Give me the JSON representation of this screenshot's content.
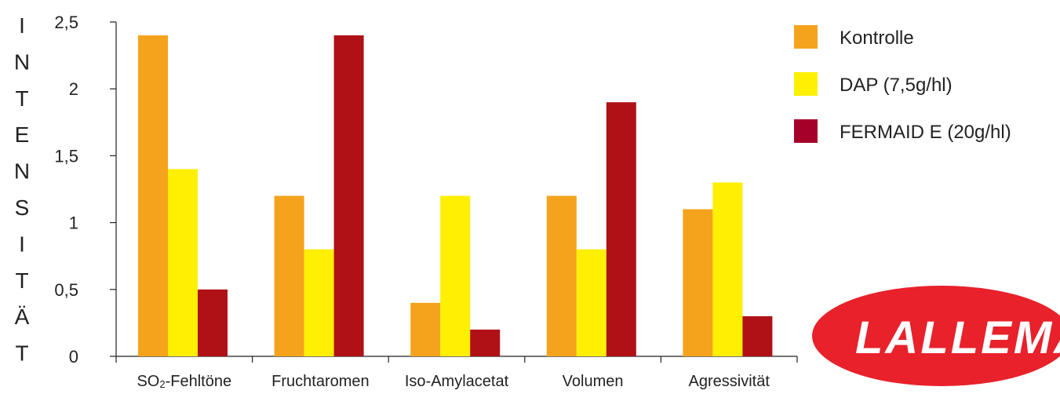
{
  "chart_data": {
    "type": "bar",
    "ylabel": "INTENSITÄT",
    "ylim": [
      0,
      2.5
    ],
    "yticks": [
      "0",
      "0,5",
      "1",
      "1,5",
      "2",
      "2,5"
    ],
    "ytick_values": [
      0,
      0.5,
      1,
      1.5,
      2,
      2.5
    ],
    "categories": [
      "Fehltöne",
      "Fruchtaromen",
      "Iso-Amylacetat",
      "Volumen",
      "Agressivität"
    ],
    "first_category_prefix": "SO",
    "first_category_subscript": "2",
    "first_category_suffix": "-Fehltöne",
    "series": [
      {
        "name": "Kontrolle",
        "color": "#f5a31d",
        "values": [
          2.4,
          1.2,
          0.4,
          1.2,
          1.1
        ]
      },
      {
        "name": "DAP (7,5g/hl)",
        "color": "#ffef00",
        "values": [
          1.4,
          0.8,
          1.2,
          0.8,
          1.3
        ]
      },
      {
        "name": "FERMAID E (20g/hl)",
        "color": "#b01116",
        "values": [
          0.5,
          2.4,
          0.2,
          1.9,
          0.3
        ]
      }
    ],
    "legend_colors": [
      "#f5a31d",
      "#ffef00",
      "#a5002a"
    ],
    "legend_position": "top-right",
    "grid": false
  },
  "logo": {
    "text": "LALLEMAND",
    "color": "#e8212a"
  }
}
